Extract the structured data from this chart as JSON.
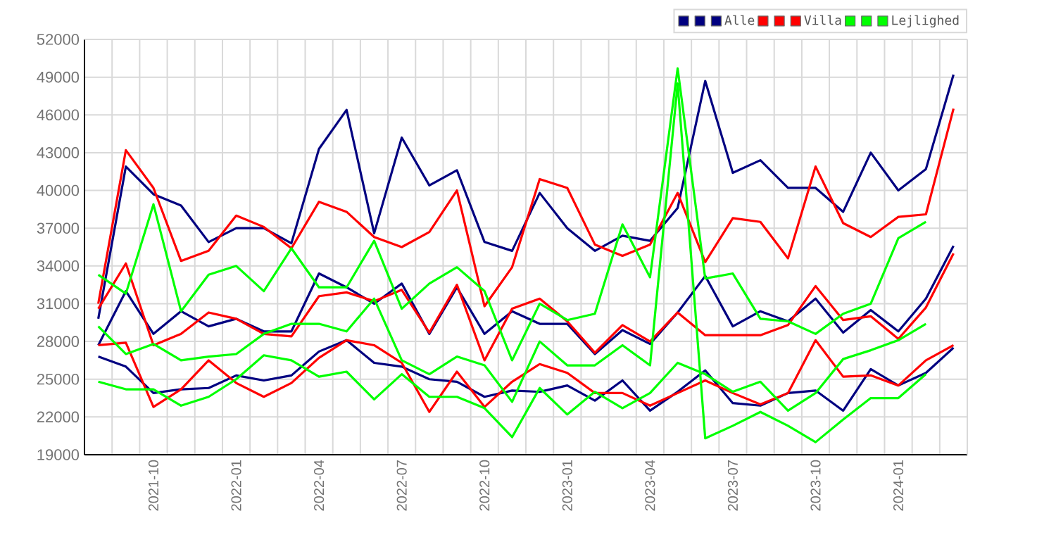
{
  "chart_data": {
    "type": "line",
    "categories": [
      null,
      null,
      "2021-10",
      null,
      null,
      "2022-01",
      null,
      null,
      "2022-04",
      null,
      null,
      "2022-07",
      null,
      null,
      "2022-10",
      null,
      null,
      "2023-01",
      null,
      null,
      "2023-04",
      null,
      null,
      "2023-07",
      null,
      null,
      "2023-10",
      null,
      null,
      "2024-01",
      null,
      null
    ],
    "series": [
      {
        "color": "#000080",
        "values": [
          29800,
          41900,
          39700,
          38800,
          35900,
          37000,
          37000,
          35800,
          43300,
          46400,
          36600,
          44200,
          40400,
          41600,
          35900,
          35200,
          39800,
          37000,
          35200,
          36400,
          36000,
          38600,
          48700,
          41400,
          42400,
          40200,
          40200,
          38300,
          43000,
          40000,
          41700,
          49200
        ]
      },
      {
        "color": "#000080",
        "values": [
          27700,
          32000,
          28600,
          30400,
          29200,
          29800,
          28800,
          28800,
          33400,
          32300,
          31000,
          32600,
          28600,
          32300,
          28600,
          30400,
          29400,
          29400,
          27000,
          28900,
          27800,
          30300,
          33200,
          29200,
          30400,
          29600,
          31400,
          28700,
          30500,
          28800,
          31400,
          35600
        ]
      },
      {
        "name": "Alle",
        "color": "#000080",
        "values": [
          26800,
          26000,
          23900,
          24200,
          24300,
          25300,
          24900,
          25300,
          27200,
          28100,
          26300,
          26000,
          25000,
          24800,
          23600,
          24100,
          24000,
          24500,
          23300,
          24900,
          22500,
          24000,
          25700,
          23100,
          22900,
          23900,
          24100,
          22500,
          25800,
          24500,
          25500,
          27500
        ]
      },
      {
        "color": "#ff0000",
        "values": [
          31000,
          43200,
          40200,
          34400,
          35200,
          38000,
          37100,
          35400,
          39100,
          38300,
          36300,
          35500,
          36700,
          40000,
          30800,
          33900,
          40900,
          40200,
          35700,
          34800,
          35700,
          39800,
          34300,
          37800,
          37500,
          34600,
          41900,
          37400,
          36300,
          37900,
          38100,
          46500
        ]
      },
      {
        "color": "#ff0000",
        "values": [
          30600,
          34200,
          27700,
          28600,
          30300,
          29800,
          28600,
          28400,
          31600,
          31900,
          31200,
          32100,
          28700,
          32500,
          26500,
          30600,
          31400,
          29600,
          27100,
          29300,
          28000,
          30300,
          28500,
          28500,
          28500,
          29300,
          32400,
          29700,
          30000,
          28200,
          30700,
          35000
        ]
      },
      {
        "name": "Villa",
        "color": "#ff0000",
        "values": [
          27700,
          27900,
          22800,
          24200,
          26500,
          24700,
          23600,
          24700,
          26700,
          28100,
          27700,
          26300,
          22400,
          25600,
          22800,
          24800,
          26200,
          25500,
          23900,
          23900,
          22900,
          23900,
          24900,
          23900,
          23000,
          23900,
          28100,
          25200,
          25300,
          24500,
          26500,
          27700
        ]
      },
      {
        "color": "#00ff00",
        "values": [
          33300,
          31800,
          38900,
          30400,
          33300,
          34000,
          32000,
          35400,
          32300,
          32300,
          36000,
          30600,
          32600,
          33900,
          32000,
          26500,
          31000,
          29700,
          30200,
          37300,
          33100,
          49700,
          33000,
          33400,
          29800,
          29600,
          28600,
          30200,
          31000,
          36200,
          37500,
          null
        ]
      },
      {
        "color": "#00ff00",
        "values": [
          29200,
          27000,
          27800,
          26500,
          26800,
          27000,
          28600,
          29400,
          29400,
          28800,
          31400,
          26500,
          25400,
          26800,
          26100,
          23200,
          28000,
          26100,
          26100,
          27700,
          26100,
          48500,
          20300,
          21300,
          22400,
          21300,
          20000,
          21800,
          23500,
          23500,
          25400,
          null
        ]
      },
      {
        "name": "Lejlighed",
        "color": "#00ff00",
        "values": [
          24800,
          24200,
          24200,
          22900,
          23600,
          25000,
          26900,
          26500,
          25200,
          25600,
          23400,
          25400,
          23600,
          23600,
          22700,
          20400,
          24300,
          22200,
          24000,
          22700,
          23900,
          26300,
          25400,
          24000,
          24800,
          22500,
          23900,
          26600,
          27300,
          28100,
          29400,
          null
        ]
      }
    ],
    "ylim": [
      19000,
      52000
    ],
    "yticks": [
      19000,
      22000,
      25000,
      28000,
      31000,
      34000,
      37000,
      40000,
      43000,
      46000,
      49000,
      52000
    ],
    "grid": true,
    "legend": "top right"
  }
}
